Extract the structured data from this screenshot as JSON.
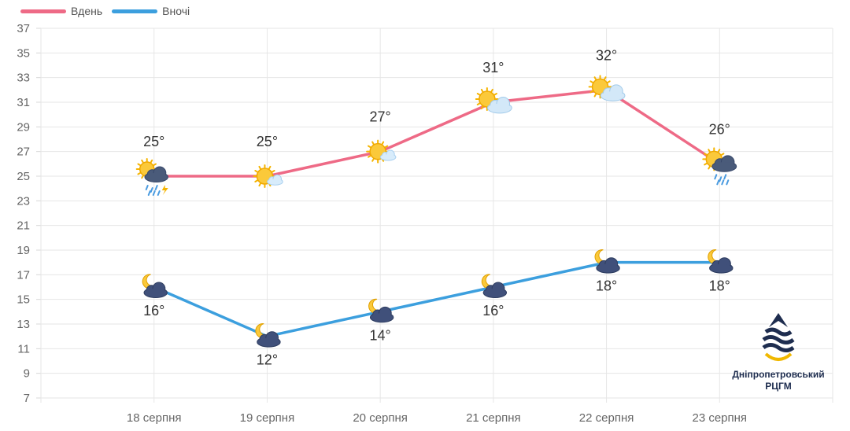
{
  "legend": [
    {
      "label": "Вдень",
      "color": "#ee6a86"
    },
    {
      "label": "Вночі",
      "color": "#3c9fde"
    }
  ],
  "logo": {
    "line1": "Дніпропетровський",
    "line2": "РЦГМ"
  },
  "chart_data": {
    "type": "line",
    "categories": [
      "18 серпня",
      "19 серпня",
      "20 серпня",
      "21 серпня",
      "22 серпня",
      "23 серпня"
    ],
    "series": [
      {
        "name": "Вдень",
        "color": "#ee6a86",
        "values": [
          25,
          25,
          27,
          31,
          32,
          26
        ],
        "labels": [
          "25°",
          "25°",
          "27°",
          "31°",
          "32°",
          "26°"
        ],
        "icons": [
          "sun-cloud-thunderstorm-icon",
          "sun-light-cloud-icon",
          "sun-light-cloud-icon",
          "sun-cloud-icon",
          "sun-cloud-icon",
          "sun-cloud-rain-icon"
        ]
      },
      {
        "name": "Вночі",
        "color": "#3c9fde",
        "values": [
          16,
          12,
          14,
          16,
          18,
          18
        ],
        "labels": [
          "16°",
          "12°",
          "14°",
          "16°",
          "18°",
          "18°"
        ],
        "icons": [
          "moon-cloud-icon",
          "moon-cloud-icon",
          "moon-cloud-icon",
          "moon-cloud-icon",
          "moon-cloud-icon",
          "moon-cloud-icon"
        ]
      }
    ],
    "yticks": [
      7,
      9,
      11,
      13,
      15,
      17,
      19,
      21,
      23,
      25,
      27,
      29,
      31,
      33,
      35,
      37
    ],
    "ylim": [
      7,
      37
    ],
    "grid": true,
    "legend_position": "top-left"
  }
}
